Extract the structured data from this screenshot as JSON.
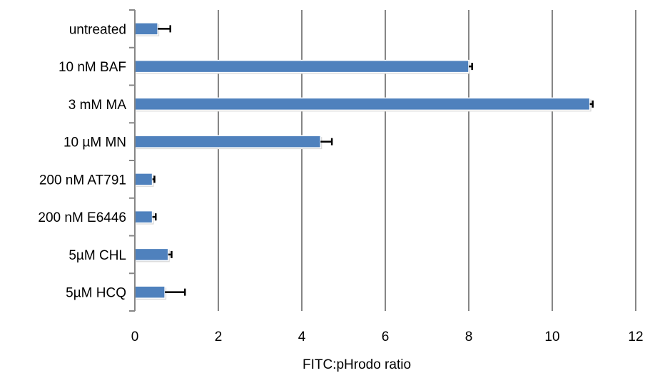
{
  "chart_data": {
    "type": "bar",
    "orientation": "horizontal",
    "title": "",
    "xlabel": "FITC:pHrodo ratio",
    "ylabel": "",
    "xlim": [
      0,
      12
    ],
    "xticks": [
      0,
      2,
      4,
      6,
      8,
      10,
      12
    ],
    "grid": true,
    "legend": "none",
    "categories": [
      "untreated",
      "10 nM BAF",
      "3 mM MA",
      "10 µM MN",
      "200 nM AT791",
      "200 nM E6446",
      "5µM CHL",
      "5µM HCQ"
    ],
    "series": [
      {
        "values": [
          0.55,
          8.0,
          10.9,
          4.45,
          0.42,
          0.42,
          0.8,
          0.72
        ],
        "errors": [
          0.3,
          0.08,
          0.07,
          0.27,
          0.05,
          0.08,
          0.08,
          0.48
        ]
      }
    ],
    "colors": {
      "bar": "#4f81bd",
      "grid": "#868686",
      "axis": "#868686",
      "error": "#000000"
    }
  }
}
